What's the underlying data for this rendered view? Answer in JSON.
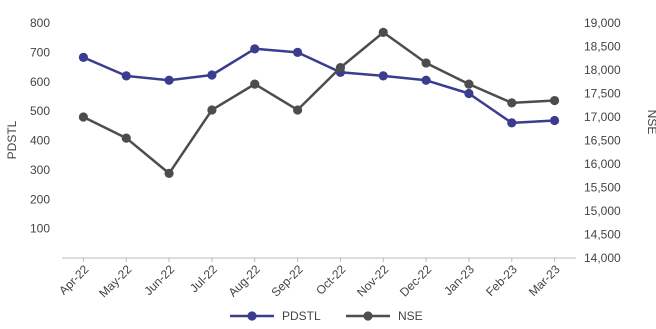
{
  "chart_data": {
    "type": "line",
    "categories": [
      "Apr-22",
      "May-22",
      "Jun-22",
      "Jul-22",
      "Aug-22",
      "Sep-22",
      "Oct-22",
      "Nov-22",
      "Dec-22",
      "Jan-23",
      "Feb-23",
      "Mar-23"
    ],
    "series": [
      {
        "name": "PDSTL",
        "axis": "left",
        "color": "#3b3c8f",
        "values": [
          683,
          620,
          605,
          623,
          712,
          700,
          632,
          620,
          605,
          560,
          460,
          468
        ]
      },
      {
        "name": "NSE",
        "axis": "right",
        "color": "#4d4d4d",
        "values": [
          17000,
          16550,
          15800,
          17150,
          17700,
          17150,
          18050,
          18800,
          18150,
          17700,
          17300,
          17350
        ]
      }
    ],
    "y_left": {
      "label": "PDSTL",
      "range": [
        0,
        800
      ],
      "ticks": [
        "100",
        "200",
        "300",
        "400",
        "500",
        "600",
        "700",
        "800"
      ]
    },
    "y_right": {
      "label": "NSE",
      "range": [
        14000,
        19000
      ],
      "ticks": [
        "14,000",
        "14,500",
        "15,000",
        "15,500",
        "16,000",
        "16,500",
        "17,000",
        "17,500",
        "18,000",
        "18,500",
        "19,000"
      ]
    },
    "grid": false,
    "legend_position": "bottom-center"
  }
}
